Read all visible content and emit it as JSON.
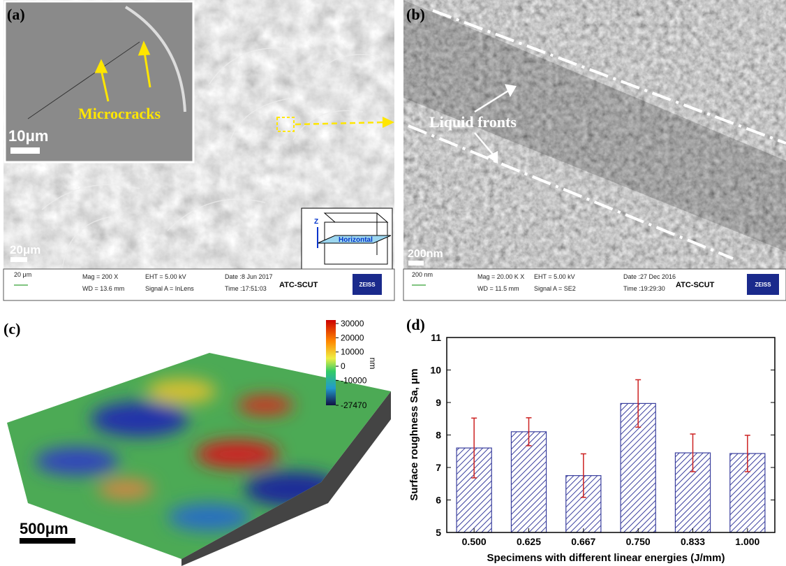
{
  "panels": {
    "a": {
      "label": "(a)",
      "inset_annotation": "Microcracks",
      "inset_scale": "10μm",
      "scale": "20μm",
      "axis_label": "Z",
      "plane_label": "Horizontal",
      "info": {
        "scale": "20 μm",
        "mag": "Mag =   200 X",
        "wd": "WD = 13.6 mm",
        "eht": "EHT = 5.00 kV",
        "signal": "Signal A = InLens",
        "date": "Date :8 Jun 2017",
        "time": "Time :17:51:03",
        "org": "ATC-SCUT",
        "logo": "ZEISS"
      }
    },
    "b": {
      "label": "(b)",
      "annotation": "Liquid fronts",
      "scale": "200nm",
      "info": {
        "scale": "200 nm",
        "mag": "Mag =  20.00 K X",
        "wd": "WD = 11.5 mm",
        "eht": "EHT =  5.00 kV",
        "signal": "Signal A = SE2",
        "date": "Date :27 Dec 2016",
        "time": "Time :19:29:30",
        "org": "ATC-SCUT",
        "logo": "ZEISS"
      }
    },
    "c": {
      "label": "(c)",
      "scale": "500μm",
      "colorbar": {
        "lim": [
          -27470,
          30000
        ],
        "ticks": [
          30000,
          20000,
          10000,
          0,
          -10000,
          -27470
        ],
        "unit": "nm"
      }
    }
  },
  "chart_data": {
    "type": "bar",
    "label": "(d)",
    "categories": [
      "0.500",
      "0.625",
      "0.667",
      "0.750",
      "0.833",
      "1.000"
    ],
    "values": [
      7.6,
      8.1,
      6.75,
      8.97,
      7.45,
      7.43
    ],
    "errors": [
      0.92,
      0.43,
      0.67,
      0.73,
      0.58,
      0.56
    ],
    "color": "#3a3f9e",
    "error_color": "#cc2222",
    "ylim": [
      5,
      11
    ],
    "yticks": [
      5,
      6,
      7,
      8,
      9,
      10,
      11
    ],
    "x_label": "Specimens with different linear energies (J/mm)",
    "y_label": "Surface roughness Sa, μm"
  }
}
